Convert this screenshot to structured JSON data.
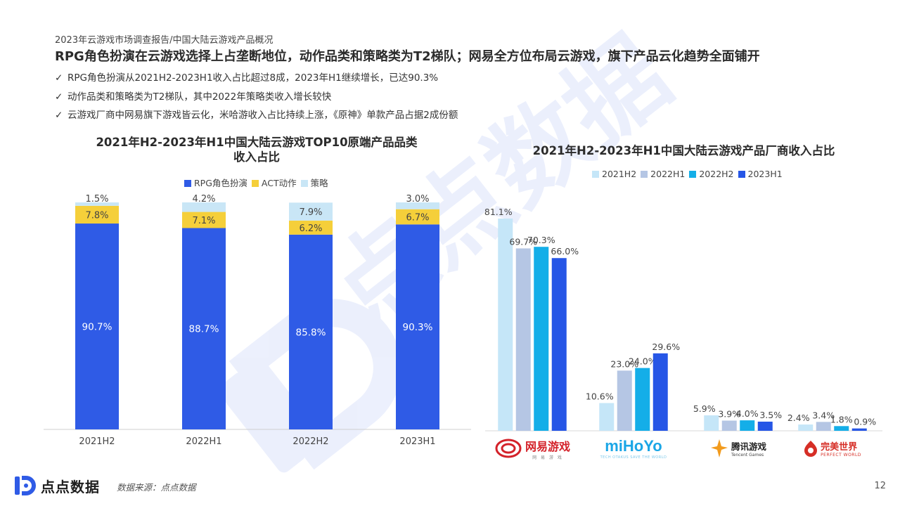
{
  "header": {
    "breadcrumb": "2023年云游戏市场调查报告/中国大陆云游戏产品概况",
    "headline": "RPG角色扮演在云游戏选择上占垄断地位，动作品类和策略类为T2梯队；网易全方位布局云游戏，旗下产品云化趋势全面铺开",
    "bullets": [
      "RPG角色扮演从2021H2-2023H1收入占比超过8成，2023年H1继续增长，已达90.3%",
      "动作品类和策略类为T2梯队，其中2022年策略类收入增长较快",
      "云游戏厂商中网易旗下游戏皆云化，米哈游收入占比持续上涨，《原神》单款产品占据2成份额"
    ],
    "check_icon": "check-icon"
  },
  "chart_data": [
    {
      "type": "bar",
      "stacked": true,
      "title_line1": "2021年H2-2023年H1中国大陆云游戏TOP10原端产品品类",
      "title_line2": "收入占比",
      "categories": [
        "2021H2",
        "2022H1",
        "2022H2",
        "2023H1"
      ],
      "series": [
        {
          "name": "RPG角色扮演",
          "color": "#2f5be6",
          "values": [
            90.7,
            88.7,
            85.8,
            90.3
          ],
          "labels": [
            "90.7%",
            "88.7%",
            "85.8%",
            "90.3%"
          ]
        },
        {
          "name": "ACT动作",
          "color": "#f5cf3a",
          "values": [
            7.8,
            7.1,
            6.2,
            6.7
          ],
          "labels": [
            "7.8%",
            "7.1%",
            "6.2%",
            "6.7%"
          ]
        },
        {
          "name": "策略",
          "color": "#c9e6f6",
          "values": [
            1.5,
            4.2,
            7.9,
            3.0
          ],
          "labels": [
            "1.5%",
            "4.2%",
            "7.9%",
            "3.0%"
          ]
        }
      ],
      "ylim": [
        0,
        100
      ],
      "legend": "top"
    },
    {
      "type": "bar",
      "title": "2021年H2-2023年H1中国大陆云游戏产品厂商收入占比",
      "categories": [
        "网易游戏",
        "miHoYo",
        "腾讯游戏",
        "完美世界"
      ],
      "series": [
        {
          "name": "2021H2",
          "color": "#c5e6f8",
          "values": [
            81.1,
            10.6,
            5.9,
            2.4
          ],
          "labels": [
            "81.1%",
            "10.6%",
            "5.9%",
            "2.4%"
          ]
        },
        {
          "name": "2022H1",
          "color": "#b5c6e4",
          "values": [
            69.7,
            23.0,
            3.9,
            3.4
          ],
          "labels": [
            "69.7%",
            "23.0%",
            "3.9%",
            "3.4%"
          ]
        },
        {
          "name": "2022H2",
          "color": "#14aee8",
          "values": [
            70.3,
            24.0,
            4.0,
            1.8
          ],
          "labels": [
            "70.3%",
            "24.0%",
            "4.0%",
            "1.8%"
          ]
        },
        {
          "name": "2023H1",
          "color": "#2656e6",
          "values": [
            66.0,
            29.6,
            3.5,
            0.9
          ],
          "labels": [
            "66.0%",
            "29.6%",
            "3.5%",
            "0.9%"
          ]
        }
      ],
      "ylim": [
        0,
        81.1
      ],
      "legend": "top"
    }
  ],
  "vendors": [
    {
      "name": "网易游戏",
      "sub": "网 易 游 戏",
      "color": "#d4222a",
      "icon": "netease-logo-icon"
    },
    {
      "name": "miHoYo",
      "sub": "TECH OTAKUS SAVE THE WORLD",
      "color": "#1aa6e6",
      "icon": "mihoyo-logo-icon"
    },
    {
      "name": "腾讯游戏",
      "sub": "Tencent Games",
      "color": "#f29b1d",
      "icon": "tencent-logo-icon"
    },
    {
      "name": "完美世界",
      "sub": "PERFECT WORLD",
      "color": "#d62e26",
      "icon": "perfectworld-logo-icon"
    }
  ],
  "footer": {
    "brand": "点点数据",
    "brand_icon": "diandian-logo-icon",
    "source": "数据来源：点点数据",
    "page": "12"
  },
  "watermark": {
    "text": "点点数据",
    "icon": "diandian-watermark-icon"
  }
}
